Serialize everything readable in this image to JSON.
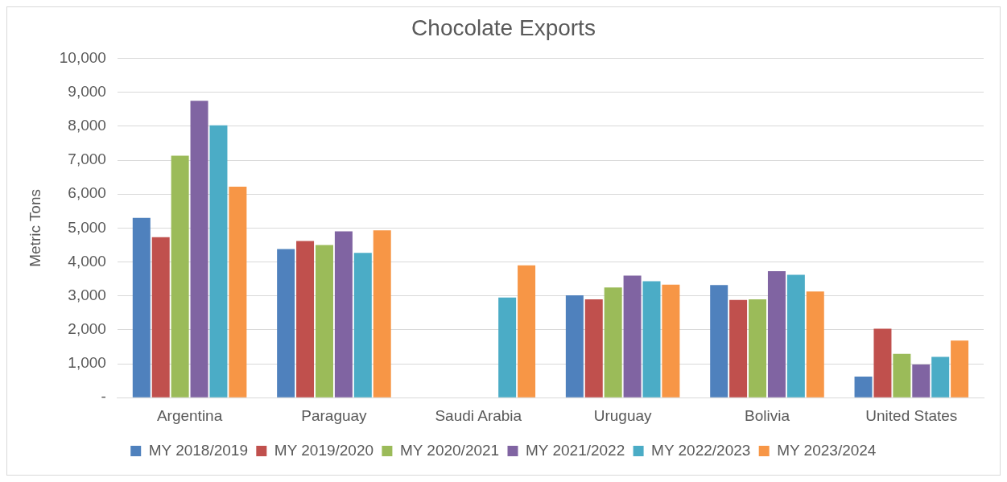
{
  "chart_data": {
    "type": "bar",
    "title": "Chocolate Exports",
    "ylabel": "Metric Tons",
    "categories": [
      "Argentina",
      "Paraguay",
      "Saudi Arabia",
      "Uruguay",
      "Bolivia",
      "United States"
    ],
    "series": [
      {
        "name": "MY 2018/2019",
        "color": "#4f81bd",
        "values": [
          5300,
          4380,
          0,
          3020,
          3320,
          620
        ]
      },
      {
        "name": "MY 2019/2020",
        "color": "#c0504d",
        "values": [
          4730,
          4620,
          0,
          2900,
          2880,
          2030
        ]
      },
      {
        "name": "MY 2020/2021",
        "color": "#9bbb59",
        "values": [
          7130,
          4500,
          0,
          3250,
          2900,
          1290
        ]
      },
      {
        "name": "MY 2021/2022",
        "color": "#8064a2",
        "values": [
          8750,
          4900,
          0,
          3600,
          3730,
          980
        ]
      },
      {
        "name": "MY 2022/2023",
        "color": "#4bacc6",
        "values": [
          8030,
          4270,
          2950,
          3430,
          3620,
          1200
        ]
      },
      {
        "name": "MY 2023/2024",
        "color": "#f79646",
        "values": [
          6220,
          4930,
          3900,
          3330,
          3130,
          1680
        ]
      }
    ],
    "ylim": [
      0,
      10000
    ],
    "yticks": [
      {
        "value": 0,
        "label": "-"
      },
      {
        "value": 1000,
        "label": "1,000"
      },
      {
        "value": 2000,
        "label": "2,000"
      },
      {
        "value": 3000,
        "label": "3,000"
      },
      {
        "value": 4000,
        "label": "4,000"
      },
      {
        "value": 5000,
        "label": "5,000"
      },
      {
        "value": 6000,
        "label": "6,000"
      },
      {
        "value": 7000,
        "label": "7,000"
      },
      {
        "value": 8000,
        "label": "8,000"
      },
      {
        "value": 9000,
        "label": "9,000"
      },
      {
        "value": 10000,
        "label": "10,000"
      }
    ],
    "grid": "y",
    "legend": "bottom"
  }
}
